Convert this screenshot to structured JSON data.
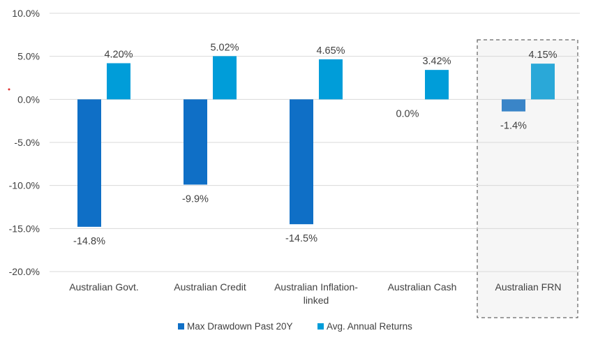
{
  "chart_data": {
    "type": "bar",
    "title": "",
    "xlabel": "",
    "ylabel": "",
    "ylim": [
      -20,
      10
    ],
    "yticks": [
      10,
      5,
      0,
      -5,
      -10,
      -15,
      -20
    ],
    "ytick_labels": [
      "10.0%",
      "5.0%",
      "0.0%",
      "-5.0%",
      "-10.0%",
      "-15.0%",
      "-20.0%"
    ],
    "grid": true,
    "categories": [
      [
        "Australian Govt."
      ],
      [
        "Australian Credit"
      ],
      [
        "Australian Inflation-",
        "linked"
      ],
      [
        "Australian Cash"
      ],
      [
        "Australian FRN"
      ]
    ],
    "series": [
      {
        "name": "Max Drawdown Past 20Y",
        "color": "#0f6fc6",
        "values": [
          -14.8,
          -9.9,
          -14.5,
          0.0,
          -1.4
        ],
        "labels": [
          "-14.8%",
          "-9.9%",
          "-14.5%",
          "0.0%",
          "-1.4%"
        ]
      },
      {
        "name": "Avg. Annual Returns",
        "color": "#009dd9",
        "values": [
          4.2,
          5.02,
          4.65,
          3.42,
          4.15
        ],
        "labels": [
          "4.20%",
          "5.02%",
          "4.65%",
          "3.42%",
          "4.15%"
        ]
      }
    ],
    "highlighted_category": 4,
    "highlight_colors": [
      "#3a85c8",
      "#2aa8d8"
    ],
    "legend_position": "bottom"
  }
}
